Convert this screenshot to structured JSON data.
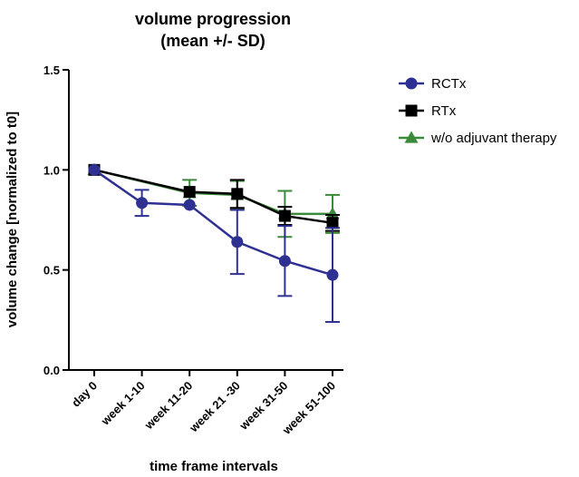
{
  "chart_data": {
    "type": "line",
    "title": "volume progression",
    "subtitle": "(mean +/- SD)",
    "xlabel": "time frame intervals",
    "ylabel": "volume change [normalized to t0]",
    "categories": [
      "day 0",
      "week 1-10",
      "week 11-20",
      "week 21 -30",
      "week 31-50",
      "week 51-100"
    ],
    "ylim": [
      0,
      1.5
    ],
    "yticks": [
      "0.0",
      "0.5",
      "1.0",
      "1.5"
    ],
    "grid": false,
    "legend_position": "top-right",
    "series": [
      {
        "name": "RCTx",
        "color": "#2e3192",
        "marker": "circle",
        "values": [
          1.0,
          0.835,
          0.825,
          0.64,
          0.545,
          0.475
        ],
        "sd": [
          0,
          0.065,
          null,
          0.16,
          0.175,
          0.235
        ]
      },
      {
        "name": "RTx",
        "color": "#000000",
        "marker": "square",
        "values": [
          1.0,
          null,
          0.89,
          0.88,
          0.77,
          0.735
        ],
        "sd": [
          0,
          null,
          null,
          0.07,
          0.045,
          0.04
        ]
      },
      {
        "name": "w/o adjuvant therapy",
        "color": "#3a8a3a",
        "marker": "triangle",
        "values": [
          1.0,
          null,
          0.885,
          0.875,
          0.78,
          0.78
        ],
        "sd": [
          0,
          null,
          0.065,
          0.07,
          0.115,
          0.095
        ]
      }
    ]
  }
}
